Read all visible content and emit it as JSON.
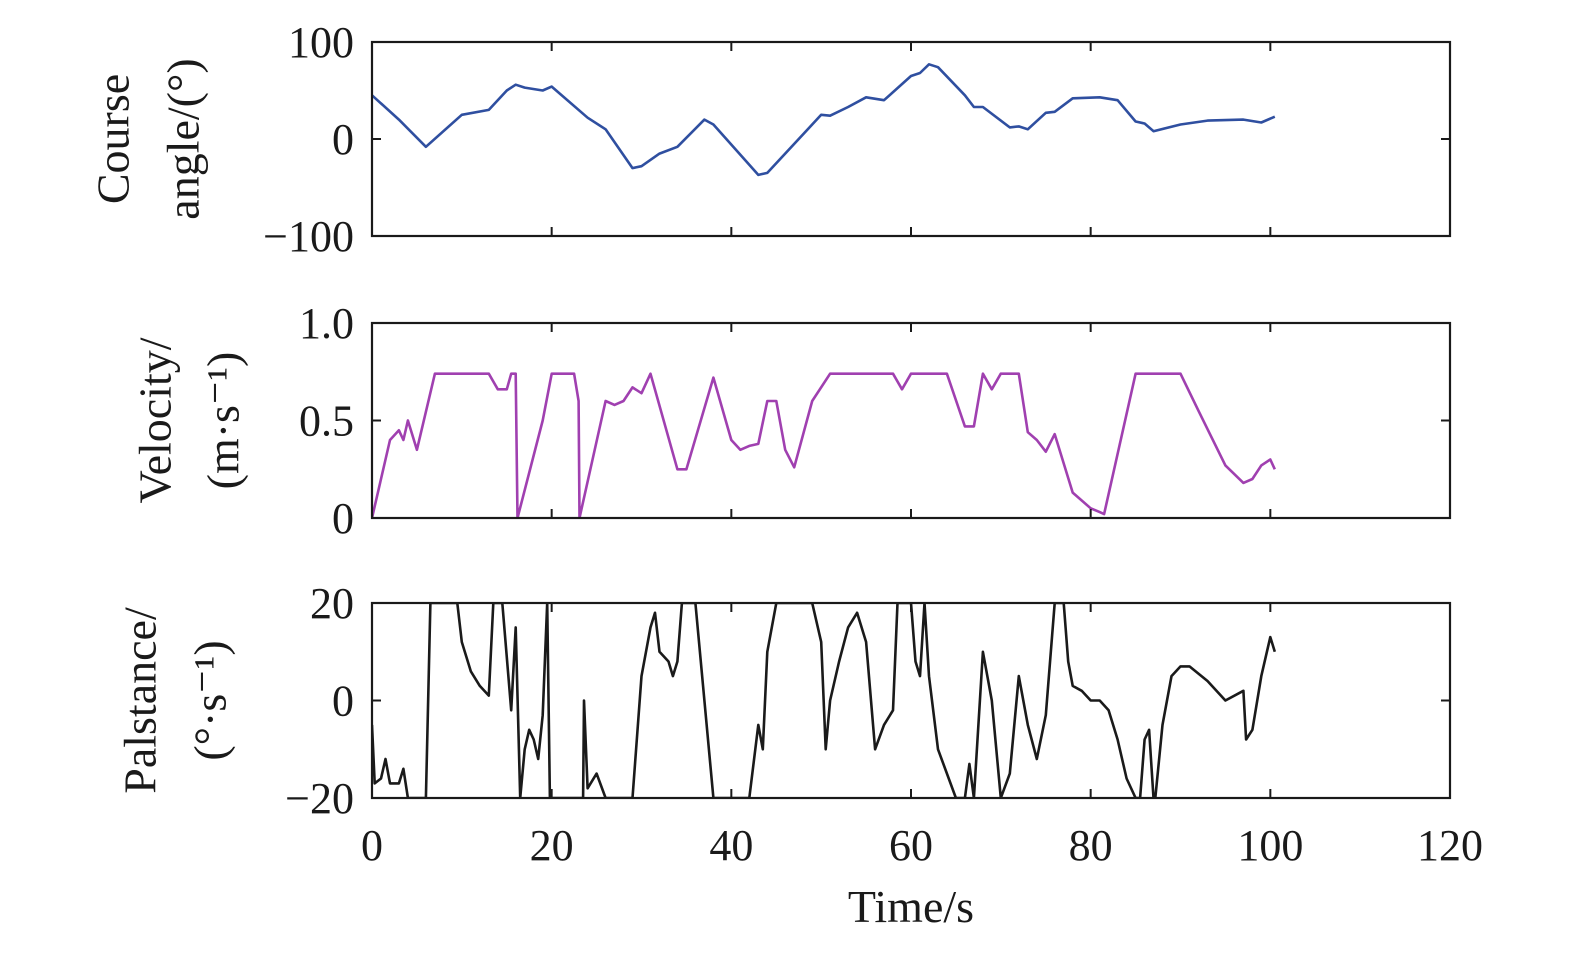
{
  "chart_data": {
    "type": "line",
    "x_axis": {
      "label": "Time/s",
      "range": [
        0,
        120
      ],
      "ticks": [
        0,
        20,
        40,
        60,
        80,
        100,
        120
      ],
      "tick_labels": [
        "0",
        "20",
        "40",
        "60",
        "80",
        "100",
        "120"
      ]
    },
    "panels": [
      {
        "name": "course-angle",
        "ylabel_lines": [
          "Course",
          "angle/(°)"
        ],
        "ylim": [
          -100,
          100
        ],
        "yticks": [
          -100,
          0,
          100
        ],
        "ytick_labels": [
          "−100",
          "0",
          "100"
        ],
        "inner_ticks": [
          0
        ],
        "color": "#2f4fa0",
        "x": [
          0,
          3,
          6,
          10,
          13,
          15,
          16,
          17,
          19,
          20,
          24,
          26,
          29,
          30,
          32,
          34,
          37,
          38,
          43,
          44,
          50,
          51,
          53,
          55,
          57,
          60,
          61,
          62,
          63,
          66,
          67,
          68,
          71,
          72,
          73,
          75,
          76,
          78,
          81,
          83,
          85,
          86,
          87,
          90,
          93,
          97,
          99,
          100.5
        ],
        "y": [
          45,
          20,
          -8,
          25,
          30,
          50,
          56,
          53,
          50,
          54,
          22,
          10,
          -30,
          -28,
          -15,
          -8,
          20,
          15,
          -37,
          -35,
          25,
          24,
          33,
          43,
          40,
          65,
          68,
          77,
          74,
          45,
          33,
          33,
          12,
          13,
          10,
          27,
          28,
          42,
          43,
          40,
          18,
          16,
          8,
          15,
          19,
          20,
          17,
          23
        ]
      },
      {
        "name": "velocity",
        "ylabel_lines": [
          "Velocity/",
          "(m·s⁻¹)"
        ],
        "ylim": [
          0,
          1.0
        ],
        "yticks": [
          0,
          0.5,
          1.0
        ],
        "ytick_labels": [
          "0",
          "0.5",
          "1.0"
        ],
        "inner_ticks": [
          0.5
        ],
        "color": "#a040b0",
        "x": [
          0,
          1,
          2,
          3,
          3.5,
          4,
          5,
          7,
          13,
          14,
          15,
          15.5,
          16,
          16.2,
          19,
          20,
          22.5,
          23,
          23.1,
          26,
          27,
          28,
          29,
          30,
          31,
          34,
          35,
          38,
          40,
          41,
          42,
          43,
          44,
          45,
          46,
          47,
          49,
          51,
          58,
          59,
          60,
          64,
          66,
          67,
          68,
          69,
          70,
          72,
          73,
          74,
          75,
          76,
          78,
          80,
          81,
          81.5,
          85,
          90,
          92,
          95,
          97,
          98,
          99,
          100,
          100.5
        ],
        "y": [
          0,
          0.2,
          0.4,
          0.45,
          0.4,
          0.5,
          0.35,
          0.74,
          0.74,
          0.66,
          0.66,
          0.74,
          0.74,
          0,
          0.5,
          0.74,
          0.74,
          0.6,
          0,
          0.6,
          0.58,
          0.6,
          0.67,
          0.64,
          0.74,
          0.25,
          0.25,
          0.72,
          0.4,
          0.35,
          0.37,
          0.38,
          0.6,
          0.6,
          0.35,
          0.26,
          0.6,
          0.74,
          0.74,
          0.66,
          0.74,
          0.74,
          0.47,
          0.47,
          0.74,
          0.66,
          0.74,
          0.74,
          0.44,
          0.4,
          0.34,
          0.43,
          0.13,
          0.05,
          0.03,
          0.02,
          0.74,
          0.74,
          0.55,
          0.27,
          0.18,
          0.2,
          0.27,
          0.3,
          0.25
        ]
      },
      {
        "name": "palstance",
        "ylabel_lines": [
          "Palstance/",
          "(°·s⁻¹)"
        ],
        "ylim": [
          -20,
          20
        ],
        "yticks": [
          -20,
          0,
          20
        ],
        "ytick_labels": [
          "−20",
          "0",
          "20"
        ],
        "inner_ticks": [
          0
        ],
        "color": "#1a1a1a",
        "x": [
          0,
          0.3,
          1,
          1.5,
          2,
          3,
          3.5,
          4,
          6,
          6.5,
          9.5,
          10,
          11,
          12,
          13,
          13.5,
          14.5,
          15.5,
          16,
          16.5,
          17,
          17.5,
          18,
          18.5,
          19,
          19.5,
          19.8,
          23,
          23.5,
          23.6,
          24,
          25,
          26,
          29,
          30,
          31,
          31.5,
          32,
          33,
          33.5,
          34,
          34.5,
          36,
          38,
          42,
          43,
          43.5,
          44,
          45,
          49,
          50,
          50.5,
          51,
          52,
          53,
          54,
          55,
          56,
          57,
          58,
          58.5,
          60,
          60.5,
          61,
          61.5,
          62,
          63,
          65,
          66,
          66.5,
          67,
          68,
          69,
          70,
          71,
          72,
          73,
          74,
          75,
          76,
          77,
          77.5,
          78,
          79,
          80,
          81,
          82,
          83,
          84,
          85,
          85.5,
          86,
          86.5,
          87,
          87.2,
          88,
          89,
          90,
          91,
          93,
          95,
          97,
          97.3,
          98,
          99,
          100,
          100.5
        ],
        "y": [
          -5,
          -17,
          -16,
          -12,
          -17,
          -17,
          -14,
          -20,
          -20,
          20,
          20,
          12,
          6,
          3,
          1,
          20,
          20,
          -2,
          15,
          -20,
          -10,
          -6,
          -8,
          -12,
          -3,
          20,
          -20,
          -20,
          -20,
          0,
          -18,
          -15,
          -20,
          -20,
          5,
          15,
          18,
          10,
          8,
          5,
          8,
          20,
          20,
          -20,
          -20,
          -5,
          -10,
          10,
          20,
          20,
          12,
          -10,
          0,
          8,
          15,
          18,
          12,
          -10,
          -5,
          -2,
          20,
          20,
          8,
          5,
          20,
          5,
          -10,
          -20,
          -20,
          -13,
          -20,
          10,
          0,
          -20,
          -15,
          5,
          -5,
          -12,
          -3,
          20,
          20,
          8,
          3,
          2,
          0,
          0,
          -2,
          -8,
          -16,
          -20,
          -20,
          -8,
          -6,
          -20,
          -20,
          -5,
          5,
          7,
          7,
          4,
          0,
          2,
          -8,
          -6,
          5,
          13,
          10
        ]
      }
    ]
  }
}
